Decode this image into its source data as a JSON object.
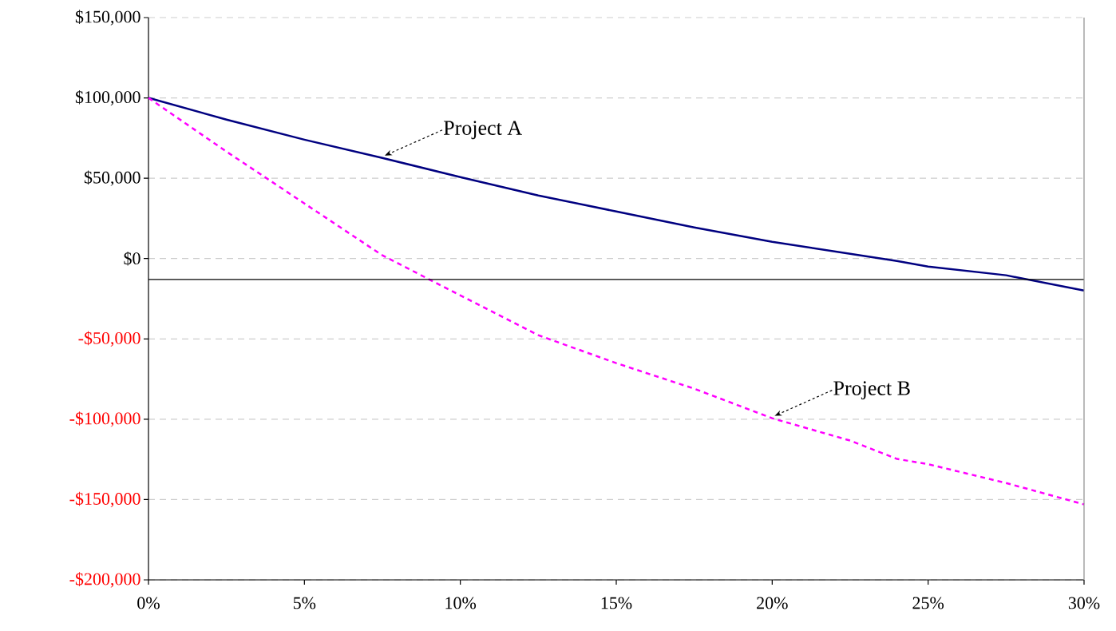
{
  "chart_data": {
    "type": "line",
    "x": [
      0,
      2.5,
      5,
      7.5,
      10,
      12.5,
      15,
      17.5,
      20,
      22.5,
      24,
      25,
      27.5,
      30
    ],
    "series": [
      {
        "name": "Project A",
        "color": "#000080",
        "line_style": "solid",
        "values": [
          100000,
          86500,
          74000,
          62600,
          50700,
          39300,
          29300,
          19400,
          10400,
          3000,
          -1500,
          -5000,
          -10400,
          -19900
        ]
      },
      {
        "name": "Project B",
        "color": "#ff00ff",
        "line_style": "dashed",
        "values": [
          100000,
          66600,
          34300,
          2000,
          -22900,
          -47700,
          -65100,
          -81000,
          -99400,
          -113300,
          -124700,
          -128000,
          -139700,
          -153000
        ]
      }
    ],
    "xlim": [
      0,
      30
    ],
    "xticks": [
      {
        "value": 0,
        "label": "0%"
      },
      {
        "value": 5,
        "label": "5%"
      },
      {
        "value": 10,
        "label": "10%"
      },
      {
        "value": 15,
        "label": "15%"
      },
      {
        "value": 20,
        "label": "20%"
      },
      {
        "value": 25,
        "label": "25%"
      },
      {
        "value": 30,
        "label": "30%"
      }
    ],
    "ylim": [
      -200000,
      150000
    ],
    "yticks": [
      {
        "value": -200000,
        "label": "-$200,000"
      },
      {
        "value": -150000,
        "label": "-$150,000"
      },
      {
        "value": -100000,
        "label": "-$100,000"
      },
      {
        "value": -50000,
        "label": "-$50,000"
      },
      {
        "value": 0,
        "label": "$0"
      },
      {
        "value": 50000,
        "label": "$50,000"
      },
      {
        "value": 100000,
        "label": "$100,000"
      },
      {
        "value": 150000,
        "label": "$150,000"
      }
    ],
    "grid": "y",
    "ref_lines": [
      {
        "axis": "y",
        "value": -13000,
        "color": "#000000"
      }
    ]
  }
}
